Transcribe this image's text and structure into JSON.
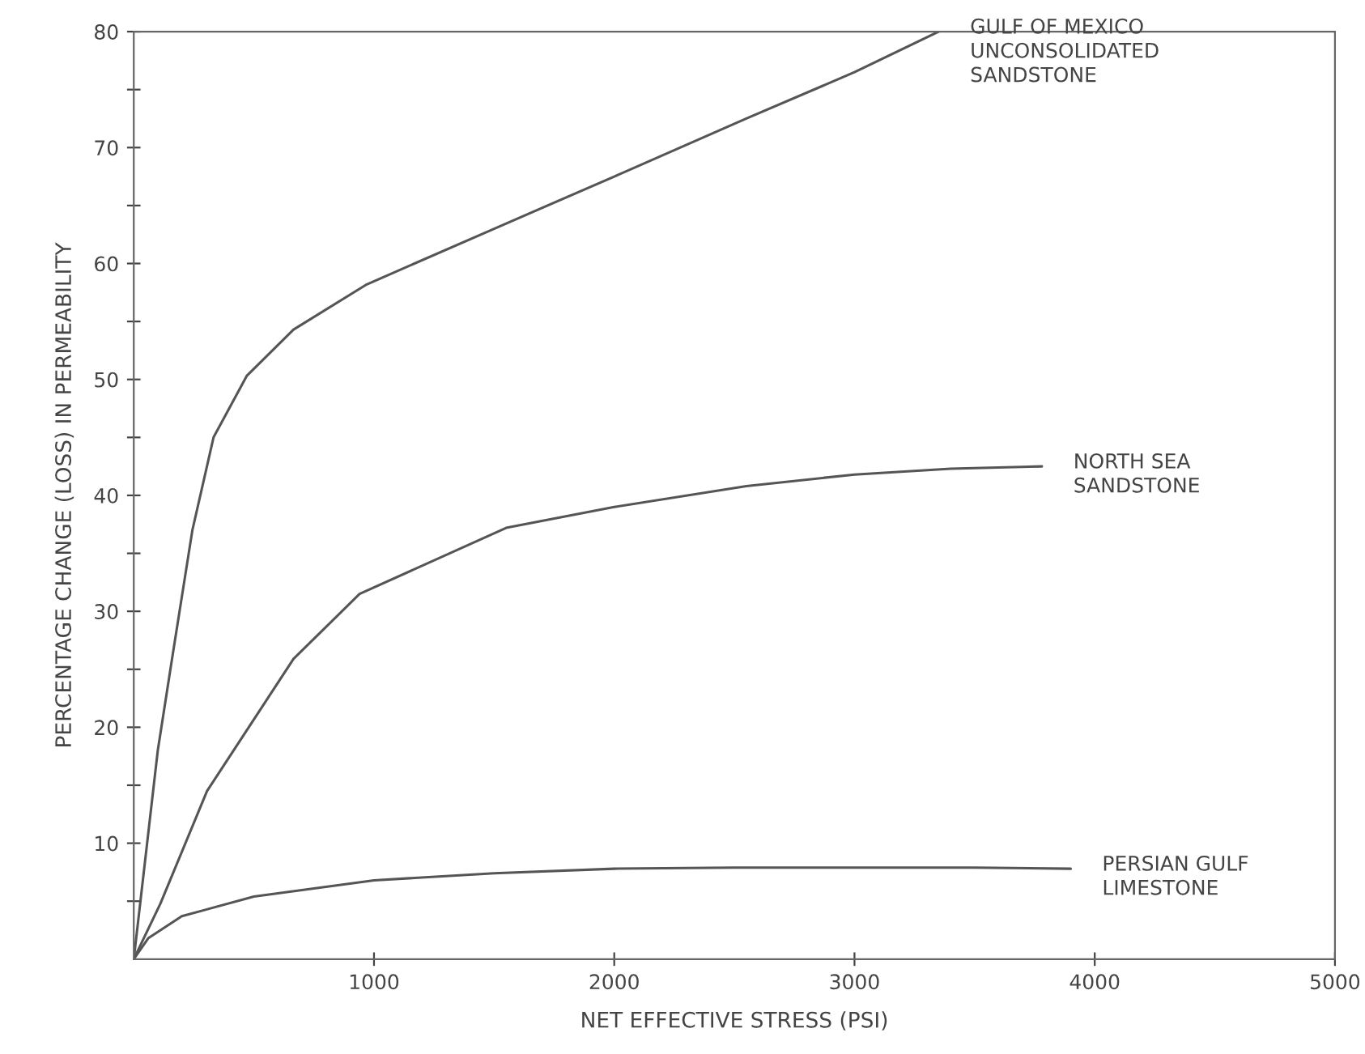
{
  "chart_data": {
    "type": "line",
    "xlabel": "NET EFFECTIVE STRESS (PSI)",
    "ylabel": "PERCENTAGE CHANGE (LOSS) IN PERMEABILITY",
    "xlim": [
      0,
      5000
    ],
    "ylim": [
      0,
      80
    ],
    "xticks": [
      1000,
      2000,
      3000,
      4000,
      5000
    ],
    "yticks": [
      {
        "value": 5,
        "label": null
      },
      10,
      {
        "value": 15,
        "label": null
      },
      20,
      {
        "value": 25,
        "label": null
      },
      30,
      {
        "value": 35,
        "label": null
      },
      40,
      {
        "value": 45,
        "label": null
      },
      50,
      {
        "value": 55,
        "label": null
      },
      60,
      {
        "value": 65,
        "label": null
      },
      70,
      {
        "value": 75,
        "label": null
      },
      80
    ],
    "grid": false,
    "legend": false,
    "marker": "none",
    "line_style": "solid",
    "series": [
      {
        "name": "GULF OF MEXICO\nUNCONSOLIDATED\nSANDSTONE",
        "color": "#555555",
        "x": [
          0,
          100,
          160,
          244,
          332,
          470,
          665,
          970,
          1500,
          2000,
          2550,
          3000,
          3350
        ],
        "values": [
          0,
          18,
          26,
          37,
          45,
          50.3,
          54.3,
          58.2,
          63,
          67.5,
          72.5,
          76.5,
          80
        ]
      },
      {
        "name": "NORTH SEA\nSANDSTONE",
        "color": "#555555",
        "x": [
          0,
          111,
          305,
          665,
          940,
          1550,
          2000,
          2550,
          3000,
          3400,
          3780
        ],
        "values": [
          0,
          4.8,
          14.5,
          25.9,
          31.5,
          37.2,
          39,
          40.8,
          41.8,
          42.3,
          42.5
        ]
      },
      {
        "name": "PERSIAN GULF\nLIMESTONE",
        "color": "#555555",
        "x": [
          0,
          60,
          200,
          500,
          1000,
          1500,
          2000,
          2500,
          3000,
          3500,
          3900
        ],
        "values": [
          0,
          1.8,
          3.7,
          5.4,
          6.8,
          7.4,
          7.8,
          7.9,
          7.9,
          7.9,
          7.8
        ]
      }
    ]
  }
}
